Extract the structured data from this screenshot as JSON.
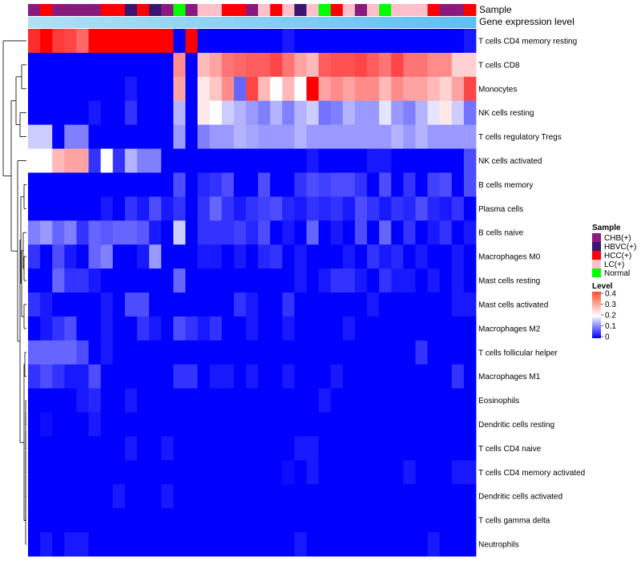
{
  "chart_data": {
    "type": "heatmap",
    "annotation_bars": {
      "sample_label": "Sample",
      "level_label": "Gene expression level"
    },
    "columns_sample": [
      "CHB(+)",
      "HCC(+)",
      "CHB(+)",
      "CHB(+)",
      "CHB(+)",
      "CHB(+)",
      "HCC(+)",
      "HCC(+)",
      "HBVC(+)",
      "HCC(+)",
      "HBVC(+)",
      "CHB(+)",
      "Normal",
      "CHB(+)",
      "LC(+)",
      "LC(+)",
      "HCC(+)",
      "HCC(+)",
      "CHB(+)",
      "LC(+)",
      "HCC(+)",
      "LC(+)",
      "HBVC(+)",
      "LC(+)",
      "Normal",
      "HCC(+)",
      "LC(+)",
      "CHB(+)",
      "LC(+)",
      "Normal",
      "LC(+)",
      "LC(+)",
      "LC(+)",
      "HCC(+)",
      "CHB(+)",
      "CHB(+)",
      "HCC(+)"
    ],
    "rows": [
      "T cells CD4 memory resting",
      "T cells CD8",
      "Monocytes",
      "NK cells resting",
      "T cells regulatory  Tregs",
      "NK cells activated",
      "B cells memory",
      "Plasma cells",
      "B cells naive",
      "Macrophages M0",
      "Mast cells resting",
      "Mast cells activated",
      "Macrophages M2",
      "T cells follicular helper",
      "Macrophages M1",
      "Eosinophils",
      "Dendritic cells resting",
      "T cells CD4 naive",
      "T cells CD4 memory activated",
      "Dendritic cells activated",
      "T cells gamma delta",
      "Neutrophils"
    ],
    "values": [
      [
        0.38,
        0.42,
        0.37,
        0.36,
        0.33,
        0.42,
        0.42,
        0.42,
        0.42,
        0.42,
        0.42,
        0.42,
        0.0,
        0.42,
        0.0,
        0.0,
        0.0,
        0.0,
        0.0,
        0.0,
        0.0,
        0.02,
        0.0,
        0.0,
        0.0,
        0.0,
        0.0,
        0.0,
        0.0,
        0.0,
        0.0,
        0.0,
        0.0,
        0.0,
        0.0,
        0.0,
        0.02
      ],
      [
        0.0,
        0.0,
        0.0,
        0.0,
        0.0,
        0.0,
        0.0,
        0.0,
        0.0,
        0.0,
        0.0,
        0.0,
        0.3,
        0.0,
        0.26,
        0.28,
        0.32,
        0.33,
        0.34,
        0.34,
        0.36,
        0.32,
        0.28,
        0.26,
        0.34,
        0.35,
        0.35,
        0.36,
        0.34,
        0.32,
        0.36,
        0.32,
        0.32,
        0.3,
        0.3,
        0.24,
        0.24
      ],
      [
        0.0,
        0.0,
        0.0,
        0.0,
        0.0,
        0.0,
        0.0,
        0.0,
        0.02,
        0.0,
        0.0,
        0.0,
        0.28,
        0.0,
        0.22,
        0.25,
        0.3,
        0.08,
        0.36,
        0.26,
        0.2,
        0.26,
        0.2,
        0.42,
        0.28,
        0.3,
        0.28,
        0.3,
        0.3,
        0.26,
        0.3,
        0.28,
        0.28,
        0.26,
        0.24,
        0.28,
        0.36
      ],
      [
        0.0,
        0.0,
        0.0,
        0.0,
        0.0,
        0.02,
        0.0,
        0.0,
        0.04,
        0.0,
        0.0,
        0.0,
        0.14,
        0.0,
        0.22,
        0.2,
        0.16,
        0.14,
        0.12,
        0.1,
        0.14,
        0.1,
        0.14,
        0.16,
        0.09,
        0.1,
        0.14,
        0.12,
        0.12,
        0.18,
        0.12,
        0.1,
        0.14,
        0.18,
        0.22,
        0.16,
        0.09
      ],
      [
        0.16,
        0.16,
        0.0,
        0.1,
        0.1,
        0.0,
        0.0,
        0.0,
        0.0,
        0.0,
        0.0,
        0.0,
        0.12,
        0.0,
        0.1,
        0.12,
        0.12,
        0.14,
        0.13,
        0.12,
        0.12,
        0.12,
        0.14,
        0.12,
        0.12,
        0.12,
        0.12,
        0.12,
        0.12,
        0.12,
        0.14,
        0.12,
        0.14,
        0.12,
        0.12,
        0.12,
        0.12
      ],
      [
        0.2,
        0.2,
        0.26,
        0.28,
        0.28,
        0.04,
        0.2,
        0.04,
        0.14,
        0.1,
        0.1,
        0.0,
        0.0,
        0.0,
        0.0,
        0.0,
        0.0,
        0.0,
        0.0,
        0.0,
        0.0,
        0.0,
        0.0,
        0.02,
        0.0,
        0.0,
        0.0,
        0.0,
        0.02,
        0.02,
        0.0,
        0.0,
        0.0,
        0.0,
        0.0,
        0.0,
        0.06
      ],
      [
        0.0,
        0.0,
        0.0,
        0.0,
        0.0,
        0.0,
        0.0,
        0.0,
        0.0,
        0.0,
        0.0,
        0.0,
        0.06,
        0.0,
        0.03,
        0.04,
        0.06,
        0.0,
        0.0,
        0.06,
        0.0,
        0.0,
        0.04,
        0.06,
        0.05,
        0.06,
        0.06,
        0.04,
        0.0,
        0.06,
        0.0,
        0.04,
        0.0,
        0.05,
        0.06,
        0.0,
        0.06
      ],
      [
        0.0,
        0.0,
        0.0,
        0.0,
        0.0,
        0.0,
        0.02,
        0.0,
        0.04,
        0.02,
        0.06,
        0.02,
        0.04,
        0.0,
        0.04,
        0.08,
        0.04,
        0.02,
        0.04,
        0.05,
        0.06,
        0.03,
        0.02,
        0.04,
        0.03,
        0.04,
        0.02,
        0.06,
        0.04,
        0.02,
        0.04,
        0.03,
        0.06,
        0.03,
        0.02,
        0.04,
        0.0
      ],
      [
        0.1,
        0.12,
        0.08,
        0.1,
        0.04,
        0.08,
        0.07,
        0.08,
        0.08,
        0.07,
        0.02,
        0.0,
        0.16,
        0.0,
        0.04,
        0.04,
        0.04,
        0.05,
        0.03,
        0.06,
        0.0,
        0.02,
        0.0,
        0.08,
        0.0,
        0.02,
        0.0,
        0.06,
        0.0,
        0.08,
        0.0,
        0.04,
        0.0,
        0.02,
        0.04,
        0.0,
        0.02
      ],
      [
        0.04,
        0.0,
        0.06,
        0.02,
        0.0,
        0.08,
        0.1,
        0.0,
        0.0,
        0.02,
        0.12,
        0.0,
        0.0,
        0.0,
        0.02,
        0.02,
        0.0,
        0.02,
        0.0,
        0.03,
        0.04,
        0.0,
        0.02,
        0.0,
        0.0,
        0.0,
        0.02,
        0.0,
        0.04,
        0.02,
        0.03,
        0.0,
        0.02,
        0.0,
        0.0,
        0.02,
        0.0
      ],
      [
        0.0,
        0.0,
        0.08,
        0.04,
        0.04,
        0.02,
        0.0,
        0.0,
        0.0,
        0.0,
        0.0,
        0.0,
        0.08,
        0.0,
        0.0,
        0.0,
        0.0,
        0.0,
        0.0,
        0.0,
        0.0,
        0.0,
        0.02,
        0.0,
        0.02,
        0.04,
        0.04,
        0.02,
        0.0,
        0.04,
        0.02,
        0.02,
        0.0,
        0.02,
        0.0,
        0.02,
        0.0
      ],
      [
        0.04,
        0.02,
        0.0,
        0.0,
        0.0,
        0.0,
        0.02,
        0.0,
        0.06,
        0.06,
        0.0,
        0.0,
        0.0,
        0.0,
        0.0,
        0.0,
        0.0,
        0.04,
        0.02,
        0.0,
        0.0,
        0.04,
        0.0,
        0.0,
        0.0,
        0.0,
        0.0,
        0.0,
        0.02,
        0.0,
        0.0,
        0.0,
        0.0,
        0.0,
        0.0,
        0.02,
        0.02
      ],
      [
        0.0,
        0.02,
        0.04,
        0.06,
        0.0,
        0.0,
        0.02,
        0.0,
        0.0,
        0.04,
        0.02,
        0.0,
        0.06,
        0.04,
        0.02,
        0.04,
        0.0,
        0.0,
        0.02,
        0.0,
        0.0,
        0.02,
        0.0,
        0.0,
        0.0,
        0.0,
        0.02,
        0.0,
        0.0,
        0.0,
        0.0,
        0.0,
        0.0,
        0.0,
        0.0,
        0.0,
        0.0
      ],
      [
        0.08,
        0.08,
        0.08,
        0.08,
        0.06,
        0.0,
        0.02,
        0.0,
        0.0,
        0.0,
        0.0,
        0.0,
        0.0,
        0.0,
        0.0,
        0.0,
        0.0,
        0.0,
        0.0,
        0.0,
        0.0,
        0.0,
        0.0,
        0.0,
        0.0,
        0.0,
        0.0,
        0.0,
        0.0,
        0.0,
        0.0,
        0.0,
        0.04,
        0.0,
        0.0,
        0.0,
        0.0
      ],
      [
        0.04,
        0.06,
        0.04,
        0.02,
        0.02,
        0.06,
        0.0,
        0.0,
        0.0,
        0.0,
        0.0,
        0.0,
        0.04,
        0.04,
        0.0,
        0.02,
        0.02,
        0.0,
        0.02,
        0.0,
        0.0,
        0.02,
        0.0,
        0.0,
        0.0,
        0.02,
        0.0,
        0.0,
        0.0,
        0.0,
        0.0,
        0.0,
        0.0,
        0.0,
        0.0,
        0.04,
        0.0
      ],
      [
        0.0,
        0.0,
        0.0,
        0.0,
        0.02,
        0.03,
        0.0,
        0.0,
        0.02,
        0.0,
        0.0,
        0.0,
        0.0,
        0.0,
        0.0,
        0.0,
        0.0,
        0.0,
        0.0,
        0.0,
        0.0,
        0.0,
        0.0,
        0.0,
        0.02,
        0.0,
        0.0,
        0.0,
        0.0,
        0.0,
        0.0,
        0.0,
        0.0,
        0.0,
        0.0,
        0.0,
        0.0
      ],
      [
        0.0,
        0.01,
        0.0,
        0.0,
        0.0,
        0.02,
        0.0,
        0.0,
        0.0,
        0.0,
        0.0,
        0.0,
        0.0,
        0.0,
        0.0,
        0.0,
        0.0,
        0.0,
        0.0,
        0.0,
        0.0,
        0.0,
        0.0,
        0.0,
        0.0,
        0.0,
        0.0,
        0.0,
        0.0,
        0.0,
        0.0,
        0.0,
        0.0,
        0.0,
        0.0,
        0.0,
        0.0
      ],
      [
        0.0,
        0.0,
        0.0,
        0.0,
        0.0,
        0.0,
        0.0,
        0.0,
        0.02,
        0.0,
        0.0,
        0.02,
        0.0,
        0.0,
        0.0,
        0.0,
        0.0,
        0.0,
        0.0,
        0.0,
        0.0,
        0.0,
        0.02,
        0.02,
        0.0,
        0.0,
        0.0,
        0.0,
        0.0,
        0.0,
        0.0,
        0.0,
        0.0,
        0.0,
        0.0,
        0.0,
        0.0
      ],
      [
        0.0,
        0.0,
        0.0,
        0.0,
        0.0,
        0.0,
        0.0,
        0.0,
        0.0,
        0.0,
        0.0,
        0.0,
        0.0,
        0.0,
        0.0,
        0.0,
        0.0,
        0.0,
        0.0,
        0.0,
        0.0,
        0.01,
        0.0,
        0.02,
        0.0,
        0.0,
        0.0,
        0.0,
        0.0,
        0.0,
        0.0,
        0.02,
        0.0,
        0.0,
        0.0,
        0.02,
        0.02
      ],
      [
        0.0,
        0.0,
        0.0,
        0.0,
        0.0,
        0.0,
        0.0,
        0.02,
        0.0,
        0.0,
        0.0,
        0.02,
        0.0,
        0.0,
        0.0,
        0.0,
        0.0,
        0.0,
        0.0,
        0.0,
        0.0,
        0.0,
        0.0,
        0.0,
        0.0,
        0.0,
        0.0,
        0.0,
        0.0,
        0.0,
        0.0,
        0.0,
        0.0,
        0.0,
        0.0,
        0.0,
        0.0
      ],
      [
        0.0,
        0.0,
        0.0,
        0.0,
        0.0,
        0.0,
        0.0,
        0.0,
        0.0,
        0.0,
        0.0,
        0.0,
        0.0,
        0.0,
        0.0,
        0.0,
        0.0,
        0.0,
        0.0,
        0.0,
        0.0,
        0.0,
        0.0,
        0.0,
        0.0,
        0.0,
        0.0,
        0.0,
        0.0,
        0.0,
        0.0,
        0.0,
        0.0,
        0.0,
        0.0,
        0.0,
        0.0
      ],
      [
        0.0,
        0.02,
        0.0,
        0.02,
        0.02,
        0.0,
        0.0,
        0.0,
        0.0,
        0.0,
        0.0,
        0.0,
        0.0,
        0.0,
        0.0,
        0.0,
        0.0,
        0.0,
        0.0,
        0.0,
        0.0,
        0.0,
        0.02,
        0.0,
        0.0,
        0.0,
        0.0,
        0.0,
        0.0,
        0.0,
        0.0,
        0.0,
        0.0,
        0.02,
        0.0,
        0.0,
        0.0
      ]
    ],
    "color_scale": {
      "low": "#0000ff",
      "mid": "#ffffff",
      "high": "#ff0000",
      "mid_value": 0.2,
      "range": [
        0,
        0.42
      ]
    },
    "legend_sample": {
      "title": "Sample",
      "entries": [
        {
          "label": "CHB(+)",
          "color": "#8b1a7f"
        },
        {
          "label": "HBVC(+)",
          "color": "#3a1670"
        },
        {
          "label": "HCC(+)",
          "color": "#ff0000"
        },
        {
          "label": "LC(+)",
          "color": "#ffc0cb"
        },
        {
          "label": "Normal",
          "color": "#00ff00"
        }
      ]
    },
    "legend_level": {
      "title": "Level",
      "ticks": [
        "0.4",
        "0.3",
        "0.2",
        "0.1",
        "0"
      ]
    },
    "level_bar_colors": [
      "#b0e0f6",
      "#5ec0f2"
    ]
  }
}
